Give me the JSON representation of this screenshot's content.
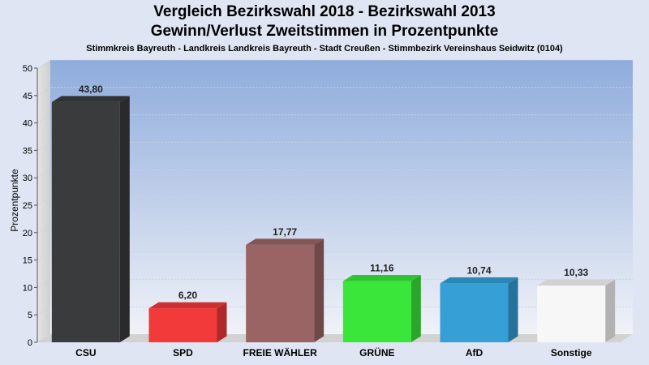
{
  "header": {
    "title_line1": "Vergleich Bezirkswahl 2018 - Bezirkswahl 2013",
    "title_line2": "Gewinn/Verlust Zweitstimmen in Prozentpunkte",
    "subtitle": "Stimmkreis Bayreuth - Landkreis Landkreis Bayreuth - Stadt Creußen - Stimmbezirk Vereinshaus Seidwitz (0104)"
  },
  "chart_data": {
    "type": "bar",
    "title": "Vergleich Bezirkswahl 2018 - Bezirkswahl 2013",
    "subtitle": "Gewinn/Verlust Zweitstimmen in Prozentpunkte",
    "xlabel": "",
    "ylabel": "Prozentpunkte",
    "ylim": [
      0,
      50
    ],
    "yticks": [
      0,
      5,
      10,
      15,
      20,
      25,
      30,
      35,
      40,
      45,
      50
    ],
    "grid": true,
    "categories": [
      "CSU",
      "SPD",
      "FREIE WÄHLER",
      "GRÜNE",
      "AfD",
      "Sonstige"
    ],
    "values": [
      43.8,
      6.2,
      17.77,
      11.16,
      10.74,
      10.33
    ],
    "value_labels": [
      "43,80",
      "6,20",
      "17,77",
      "11,16",
      "10,74",
      "10,33"
    ],
    "colors": [
      "#3a3b3d",
      "#f23a3a",
      "#9b6464",
      "#3ae63a",
      "#359fd6",
      "#f7f7f7"
    ]
  }
}
